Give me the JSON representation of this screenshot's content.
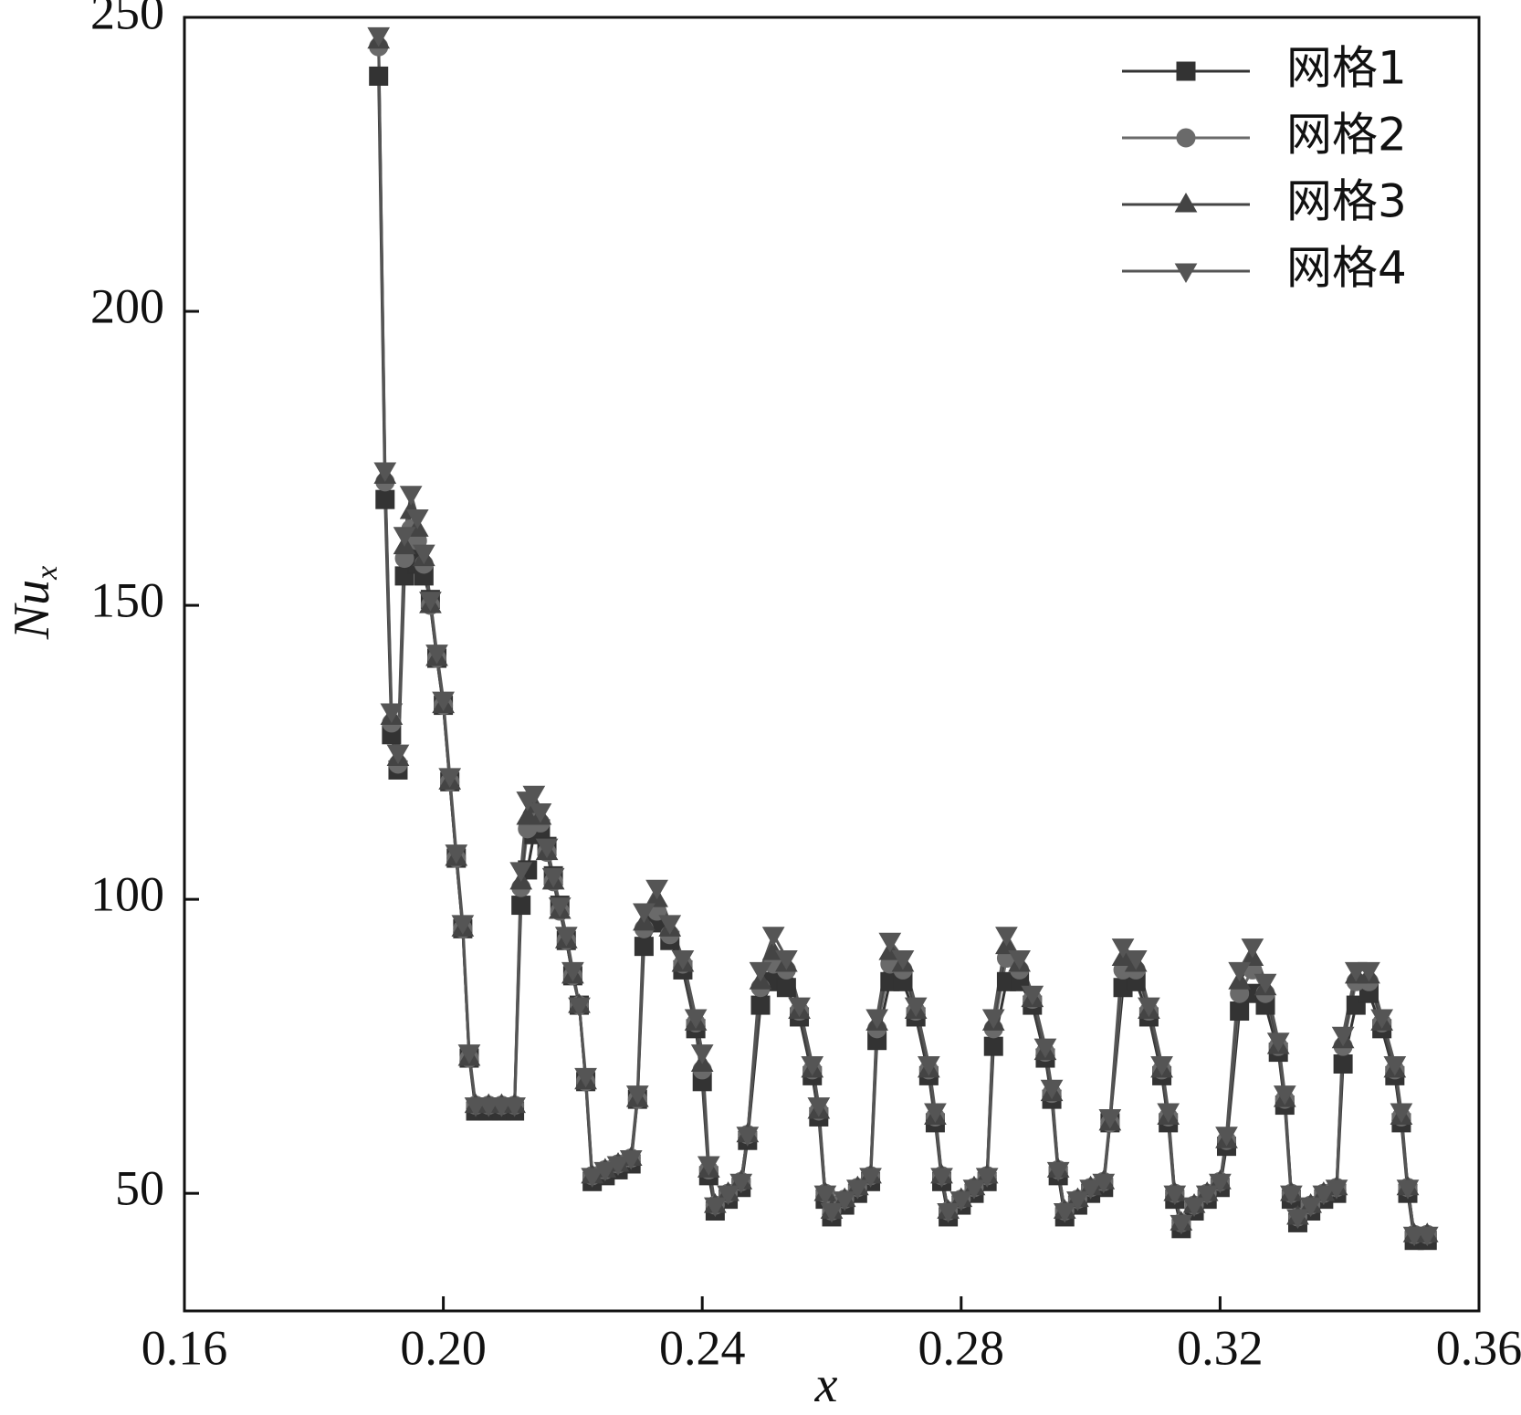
{
  "chart_data": {
    "type": "line",
    "x_label": "x",
    "y_label": "Nu",
    "y_label_sub": "x",
    "x": [
      0.19,
      0.191,
      0.192,
      0.193,
      0.194,
      0.195,
      0.196,
      0.197,
      0.198,
      0.199,
      0.2,
      0.201,
      0.202,
      0.203,
      0.204,
      0.205,
      0.207,
      0.209,
      0.211,
      0.212,
      0.213,
      0.214,
      0.215,
      0.216,
      0.217,
      0.218,
      0.219,
      0.22,
      0.221,
      0.222,
      0.223,
      0.225,
      0.227,
      0.229,
      0.23,
      0.231,
      0.233,
      0.235,
      0.237,
      0.239,
      0.24,
      0.241,
      0.242,
      0.244,
      0.246,
      0.247,
      0.249,
      0.251,
      0.253,
      0.255,
      0.257,
      0.258,
      0.259,
      0.26,
      0.262,
      0.264,
      0.266,
      0.267,
      0.269,
      0.271,
      0.273,
      0.275,
      0.276,
      0.277,
      0.278,
      0.28,
      0.282,
      0.284,
      0.285,
      0.287,
      0.289,
      0.291,
      0.293,
      0.294,
      0.295,
      0.296,
      0.298,
      0.3,
      0.302,
      0.303,
      0.305,
      0.307,
      0.309,
      0.311,
      0.312,
      0.313,
      0.314,
      0.316,
      0.318,
      0.32,
      0.321,
      0.323,
      0.325,
      0.327,
      0.329,
      0.33,
      0.331,
      0.332,
      0.334,
      0.336,
      0.338,
      0.339,
      0.341,
      0.343,
      0.345,
      0.347,
      0.348,
      0.349,
      0.35,
      0.352
    ],
    "series": [
      {
        "name": "网格1",
        "color": "#333333",
        "marker": "square",
        "values": [
          240,
          168,
          128,
          122,
          155,
          158,
          157,
          155,
          151,
          141,
          133,
          120,
          107,
          95,
          73,
          64,
          64,
          64,
          64,
          99,
          105,
          111,
          112,
          109,
          104,
          99,
          93,
          87,
          82,
          69,
          52,
          53,
          54,
          55,
          66,
          92,
          96,
          93,
          88,
          78,
          69,
          53,
          47,
          49,
          51,
          59,
          82,
          86,
          85,
          80,
          70,
          63,
          49,
          46,
          48,
          50,
          52,
          76,
          86,
          86,
          80,
          70,
          62,
          52,
          46,
          48,
          50,
          52,
          75,
          86,
          86,
          82,
          73,
          66,
          53,
          46,
          48,
          50,
          51,
          62,
          85,
          86,
          80,
          70,
          62,
          49,
          44,
          47,
          49,
          51,
          58,
          81,
          84,
          82,
          74,
          65,
          49,
          45,
          47,
          49,
          50,
          72,
          82,
          84,
          78,
          70,
          62,
          50,
          42,
          42
        ]
      },
      {
        "name": "网格2",
        "color": "#6a6a6a",
        "marker": "circle",
        "values": [
          245,
          171,
          130,
          123,
          158,
          163,
          161,
          157,
          150,
          141,
          133,
          120,
          107,
          95,
          73,
          65,
          65,
          65,
          65,
          102,
          112,
          114,
          113,
          108,
          103,
          98,
          93,
          87,
          82,
          69,
          53,
          54,
          55,
          56,
          66,
          95,
          98,
          94,
          89,
          79,
          71,
          54,
          48,
          50,
          52,
          60,
          85,
          89,
          88,
          81,
          71,
          64,
          50,
          47,
          49,
          51,
          53,
          78,
          89,
          88,
          81,
          71,
          63,
          53,
          47,
          49,
          51,
          53,
          78,
          90,
          88,
          83,
          74,
          67,
          54,
          47,
          49,
          51,
          52,
          62,
          88,
          88,
          81,
          71,
          63,
          50,
          45,
          48,
          50,
          52,
          59,
          84,
          88,
          84,
          75,
          66,
          50,
          46,
          48,
          50,
          51,
          75,
          86,
          86,
          79,
          71,
          63,
          51,
          43,
          43
        ]
      },
      {
        "name": "网格3",
        "color": "#444444",
        "marker": "triangle-up",
        "values": [
          246,
          172,
          131,
          124,
          160,
          166,
          163,
          158,
          150,
          141,
          133,
          120,
          107,
          95,
          73,
          65,
          65,
          65,
          65,
          103,
          114,
          116,
          114,
          108,
          103,
          98,
          93,
          87,
          82,
          69,
          53,
          54,
          55,
          56,
          66,
          96,
          100,
          95,
          89,
          79,
          72,
          54,
          48,
          50,
          52,
          60,
          86,
          91,
          89,
          81,
          71,
          64,
          50,
          47,
          49,
          51,
          53,
          79,
          91,
          89,
          81,
          71,
          63,
          53,
          47,
          49,
          51,
          53,
          79,
          92,
          89,
          83,
          74,
          67,
          54,
          47,
          49,
          51,
          52,
          62,
          90,
          89,
          81,
          71,
          63,
          50,
          45,
          48,
          50,
          52,
          59,
          86,
          90,
          85,
          75,
          66,
          50,
          46,
          48,
          50,
          51,
          76,
          87,
          87,
          79,
          71,
          63,
          51,
          43,
          43
        ]
      },
      {
        "name": "网格4",
        "color": "#555555",
        "marker": "triangle-down",
        "values": [
          247,
          173,
          132,
          125,
          162,
          169,
          165,
          159,
          151,
          142,
          134,
          121,
          108,
          96,
          74,
          65,
          65,
          65,
          65,
          105,
          117,
          118,
          115,
          109,
          104,
          99,
          94,
          88,
          82,
          70,
          53,
          54,
          55,
          56,
          67,
          98,
          102,
          96,
          90,
          80,
          74,
          55,
          48,
          50,
          52,
          60,
          88,
          94,
          90,
          82,
          72,
          65,
          50,
          47,
          49,
          51,
          53,
          80,
          93,
          90,
          82,
          72,
          64,
          53,
          47,
          49,
          51,
          53,
          80,
          94,
          90,
          84,
          75,
          68,
          54,
          47,
          49,
          51,
          52,
          63,
          92,
          90,
          82,
          72,
          64,
          50,
          45,
          48,
          50,
          52,
          60,
          88,
          92,
          86,
          76,
          67,
          50,
          46,
          48,
          50,
          51,
          77,
          88,
          88,
          80,
          72,
          64,
          51,
          43,
          43
        ]
      }
    ],
    "xlim": [
      0.16,
      0.36
    ],
    "xticks": [
      0.16,
      {
        "value": 0.2,
        "label": "0.20"
      },
      0.24,
      0.28,
      0.32,
      0.36
    ],
    "ylim": [
      30,
      250
    ],
    "yticks": [
      50,
      100,
      150,
      200,
      250
    ],
    "grid": false,
    "legend": "upper right"
  }
}
